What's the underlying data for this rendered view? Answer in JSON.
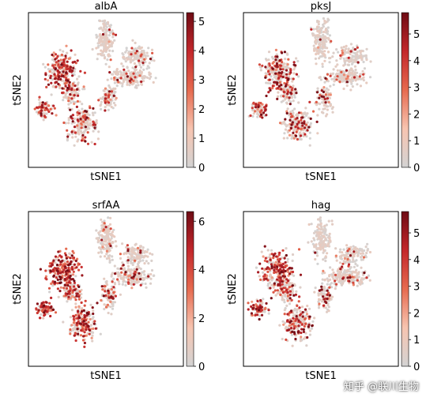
{
  "chart_data": [
    {
      "type": "scatter",
      "title": "albA",
      "xlabel": "tSNE1",
      "ylabel": "tSNE2",
      "colorbar": {
        "min": 0,
        "max": 5.3,
        "ticks": [
          0,
          1,
          2,
          3,
          4,
          5
        ]
      },
      "colormap": [
        "#d3d3d3",
        "#f7c4b0",
        "#e66a4f",
        "#c3272b",
        "#6e0b14"
      ],
      "intensity": 0.55
    },
    {
      "type": "scatter",
      "title": "pksJ",
      "xlabel": "tSNE1",
      "ylabel": "tSNE2",
      "colorbar": {
        "min": 0,
        "max": 5.8,
        "ticks": [
          0,
          1,
          2,
          3,
          4,
          5
        ]
      },
      "colormap": [
        "#d3d3d3",
        "#f7c4b0",
        "#e66a4f",
        "#c3272b",
        "#6e0b14"
      ],
      "intensity": 0.5
    },
    {
      "type": "scatter",
      "title": "srfAA",
      "xlabel": "tSNE1",
      "ylabel": "tSNE2",
      "colorbar": {
        "min": 0,
        "max": 6.4,
        "ticks": [
          0,
          2,
          4,
          6
        ]
      },
      "colormap": [
        "#d3d3d3",
        "#f7c4b0",
        "#e66a4f",
        "#c3272b",
        "#6e0b14"
      ],
      "intensity": 0.85
    },
    {
      "type": "scatter",
      "title": "hag",
      "xlabel": "tSNE1",
      "ylabel": "tSNE2",
      "colorbar": {
        "min": 0,
        "max": 5.8,
        "ticks": [
          0,
          1,
          2,
          3,
          4,
          5
        ]
      },
      "colormap": [
        "#d3d3d3",
        "#f7c4b0",
        "#e66a4f",
        "#c3272b",
        "#6e0b14"
      ],
      "intensity": 0.65
    }
  ],
  "watermark": "知乎 @联川生物"
}
